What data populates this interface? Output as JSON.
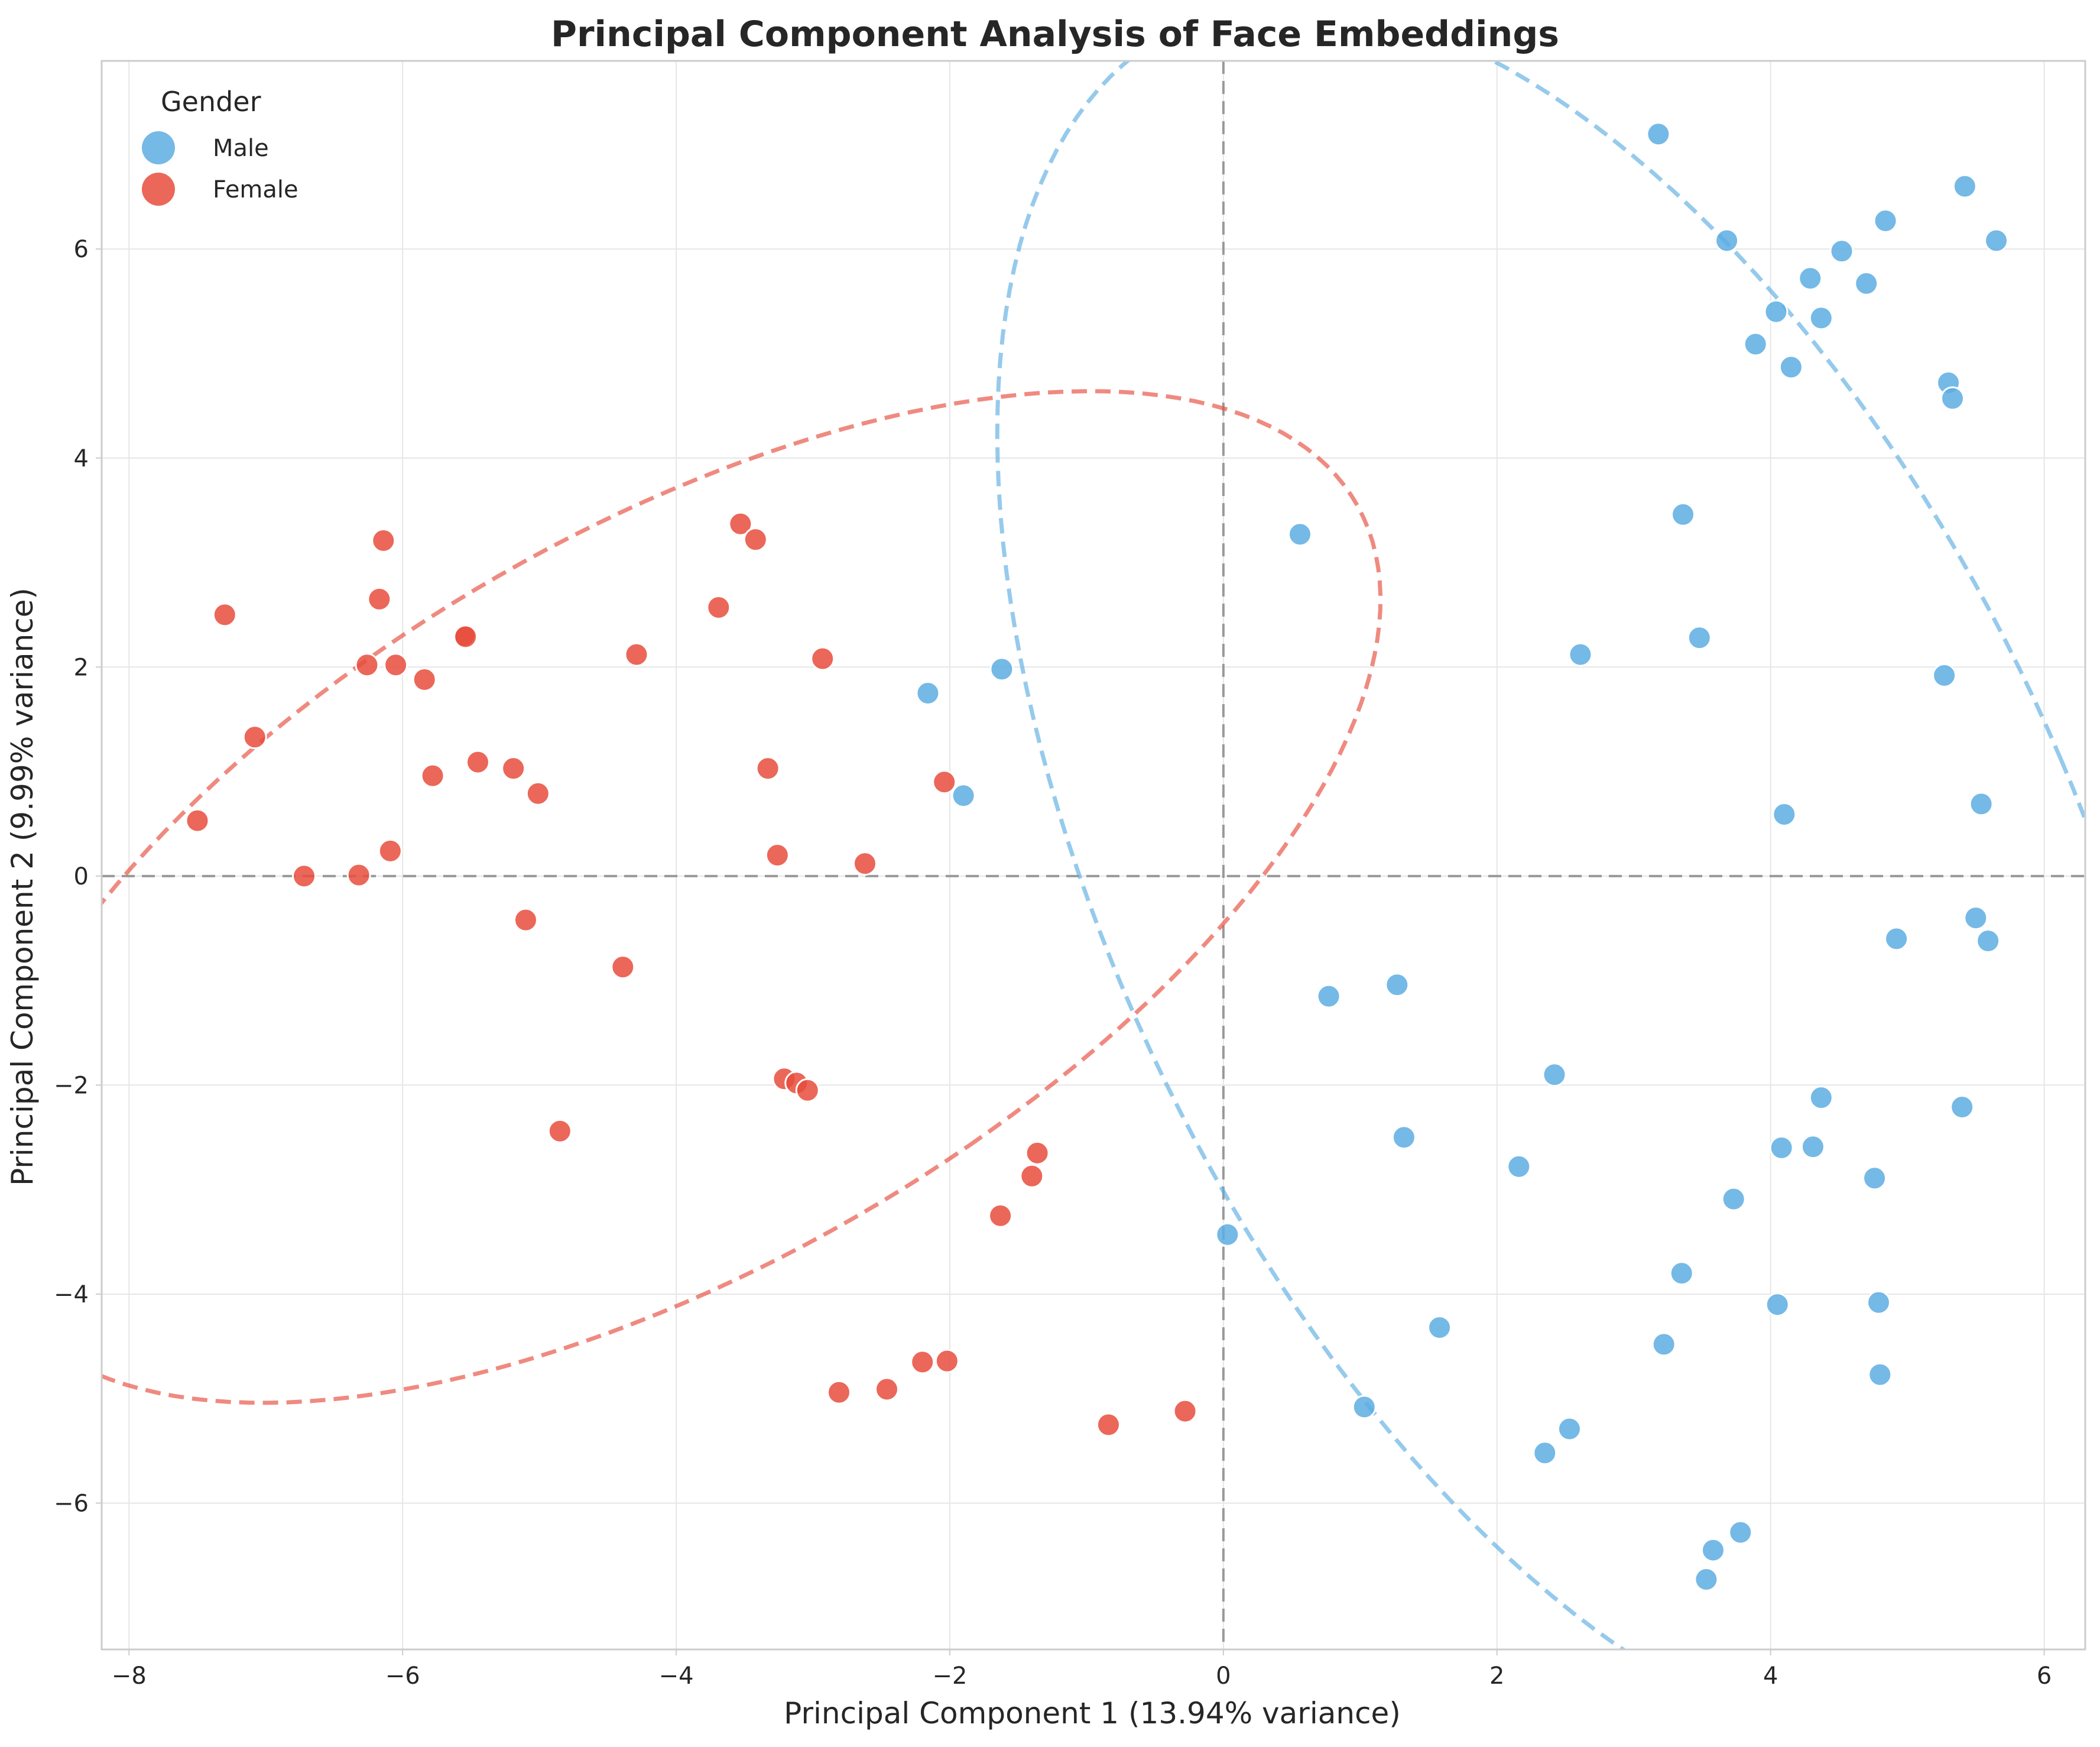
{
  "chart_data": {
    "type": "scatter",
    "title": "Principal Component Analysis of Face Embeddings",
    "xlabel": "Principal Component 1 (13.94% variance)",
    "ylabel": "Principal Component 2 (9.99% variance)",
    "xlim": [
      -8.2,
      6.3
    ],
    "ylim": [
      -7.4,
      7.8
    ],
    "xticks": [
      -8,
      -6,
      -4,
      -2,
      0,
      2,
      4,
      6
    ],
    "yticks": [
      -6,
      -4,
      -2,
      0,
      2,
      4,
      6
    ],
    "grid": true,
    "reference_lines": {
      "x": 0,
      "y": 0,
      "style": "dashed",
      "color": "#999999"
    },
    "legend": {
      "title": "Gender",
      "position": "top-left"
    },
    "series": [
      {
        "name": "Male",
        "color": "#5DADE2",
        "points": [
          [
            3.18,
            7.1
          ],
          [
            5.42,
            6.6
          ],
          [
            4.84,
            6.27
          ],
          [
            3.68,
            6.08
          ],
          [
            5.65,
            6.08
          ],
          [
            4.52,
            5.98
          ],
          [
            4.29,
            5.72
          ],
          [
            4.7,
            5.67
          ],
          [
            4.04,
            5.4
          ],
          [
            4.37,
            5.34
          ],
          [
            3.89,
            5.09
          ],
          [
            4.15,
            4.87
          ],
          [
            5.3,
            4.72
          ],
          [
            5.33,
            4.57
          ],
          [
            3.36,
            3.46
          ],
          [
            0.56,
            3.27
          ],
          [
            3.48,
            2.28
          ],
          [
            2.61,
            2.12
          ],
          [
            5.27,
            1.92
          ],
          [
            -1.62,
            1.98
          ],
          [
            -2.16,
            1.75
          ],
          [
            -1.9,
            0.77
          ],
          [
            4.1,
            0.59
          ],
          [
            5.54,
            0.69
          ],
          [
            5.5,
            -0.4
          ],
          [
            4.92,
            -0.6
          ],
          [
            5.59,
            -0.62
          ],
          [
            1.27,
            -1.04
          ],
          [
            0.77,
            -1.15
          ],
          [
            2.42,
            -1.9
          ],
          [
            4.37,
            -2.12
          ],
          [
            5.4,
            -2.21
          ],
          [
            1.32,
            -2.5
          ],
          [
            4.08,
            -2.6
          ],
          [
            4.31,
            -2.59
          ],
          [
            2.16,
            -2.78
          ],
          [
            4.76,
            -2.89
          ],
          [
            3.73,
            -3.09
          ],
          [
            0.03,
            -3.43
          ],
          [
            3.35,
            -3.8
          ],
          [
            4.05,
            -4.1
          ],
          [
            4.79,
            -4.08
          ],
          [
            1.58,
            -4.32
          ],
          [
            3.22,
            -4.48
          ],
          [
            4.8,
            -4.77
          ],
          [
            1.03,
            -5.08
          ],
          [
            2.53,
            -5.29
          ],
          [
            2.35,
            -5.52
          ],
          [
            3.78,
            -6.28
          ],
          [
            3.58,
            -6.45
          ],
          [
            3.53,
            -6.73
          ]
        ],
        "confidence_ellipse": {
          "center": [
            2.7,
            0.0
          ],
          "semi_axes": [
            3.6,
            8.7
          ],
          "angle_deg": 18
        }
      },
      {
        "name": "Female",
        "color": "#E74C3C",
        "points": [
          [
            -3.53,
            3.37
          ],
          [
            -3.42,
            3.22
          ],
          [
            -6.14,
            3.21
          ],
          [
            -6.17,
            2.65
          ],
          [
            -3.69,
            2.57
          ],
          [
            -7.3,
            2.5
          ],
          [
            -5.55,
            2.3
          ],
          [
            -5.54,
            2.29
          ],
          [
            -4.29,
            2.12
          ],
          [
            -2.93,
            2.08
          ],
          [
            -6.26,
            2.02
          ],
          [
            -6.05,
            2.02
          ],
          [
            -5.84,
            1.88
          ],
          [
            -7.08,
            1.33
          ],
          [
            -5.45,
            1.09
          ],
          [
            -5.19,
            1.03
          ],
          [
            -3.33,
            1.03
          ],
          [
            -5.78,
            0.96
          ],
          [
            -2.04,
            0.9
          ],
          [
            -5.01,
            0.79
          ],
          [
            -7.5,
            0.53
          ],
          [
            -6.09,
            0.24
          ],
          [
            -3.26,
            0.2
          ],
          [
            -2.62,
            0.12
          ],
          [
            -6.72,
            0.0
          ],
          [
            -6.32,
            0.01
          ],
          [
            -5.1,
            -0.42
          ],
          [
            -4.39,
            -0.87
          ],
          [
            -3.21,
            -1.94
          ],
          [
            -3.12,
            -1.98
          ],
          [
            -3.04,
            -2.05
          ],
          [
            -4.85,
            -2.44
          ],
          [
            -1.36,
            -2.65
          ],
          [
            -1.4,
            -2.87
          ],
          [
            -1.63,
            -3.25
          ],
          [
            -2.2,
            -4.65
          ],
          [
            -2.02,
            -4.64
          ],
          [
            -2.46,
            -4.91
          ],
          [
            -2.81,
            -4.94
          ],
          [
            -0.28,
            -5.12
          ],
          [
            -0.84,
            -5.25
          ]
        ],
        "confidence_ellipse": {
          "center": [
            -4.0,
            -0.2
          ],
          "semi_axes": [
            3.2,
            6.3
          ],
          "angle_deg": -48
        }
      }
    ]
  }
}
